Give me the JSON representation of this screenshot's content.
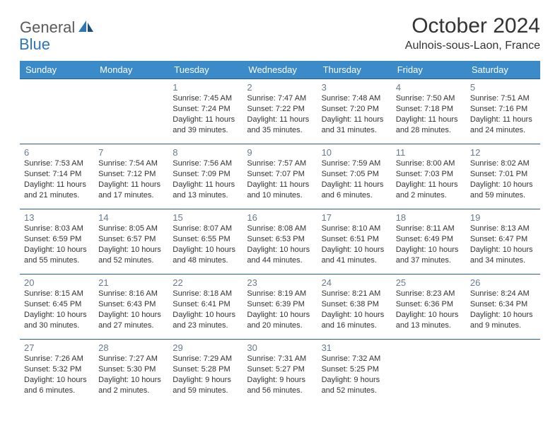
{
  "logo": {
    "general": "General",
    "blue": "Blue"
  },
  "title": "October 2024",
  "location": "Aulnois-sous-Laon, France",
  "colors": {
    "header_bg": "#3b8bc9",
    "header_text": "#ffffff",
    "row_border": "#2e5f8a",
    "daynum": "#697b8c",
    "body_text": "#333333",
    "logo_gray": "#5a5a5a",
    "logo_blue": "#2e75b6",
    "page_bg": "#ffffff"
  },
  "typography": {
    "title_fontsize": 30,
    "location_fontsize": 16,
    "dayheader_fontsize": 13,
    "daynum_fontsize": 13,
    "cell_fontsize": 11
  },
  "day_headers": [
    "Sunday",
    "Monday",
    "Tuesday",
    "Wednesday",
    "Thursday",
    "Friday",
    "Saturday"
  ],
  "weeks": [
    [
      null,
      null,
      {
        "n": "1",
        "sunrise": "Sunrise: 7:45 AM",
        "sunset": "Sunset: 7:24 PM",
        "daylight": "Daylight: 11 hours and 39 minutes."
      },
      {
        "n": "2",
        "sunrise": "Sunrise: 7:47 AM",
        "sunset": "Sunset: 7:22 PM",
        "daylight": "Daylight: 11 hours and 35 minutes."
      },
      {
        "n": "3",
        "sunrise": "Sunrise: 7:48 AM",
        "sunset": "Sunset: 7:20 PM",
        "daylight": "Daylight: 11 hours and 31 minutes."
      },
      {
        "n": "4",
        "sunrise": "Sunrise: 7:50 AM",
        "sunset": "Sunset: 7:18 PM",
        "daylight": "Daylight: 11 hours and 28 minutes."
      },
      {
        "n": "5",
        "sunrise": "Sunrise: 7:51 AM",
        "sunset": "Sunset: 7:16 PM",
        "daylight": "Daylight: 11 hours and 24 minutes."
      }
    ],
    [
      {
        "n": "6",
        "sunrise": "Sunrise: 7:53 AM",
        "sunset": "Sunset: 7:14 PM",
        "daylight": "Daylight: 11 hours and 21 minutes."
      },
      {
        "n": "7",
        "sunrise": "Sunrise: 7:54 AM",
        "sunset": "Sunset: 7:12 PM",
        "daylight": "Daylight: 11 hours and 17 minutes."
      },
      {
        "n": "8",
        "sunrise": "Sunrise: 7:56 AM",
        "sunset": "Sunset: 7:09 PM",
        "daylight": "Daylight: 11 hours and 13 minutes."
      },
      {
        "n": "9",
        "sunrise": "Sunrise: 7:57 AM",
        "sunset": "Sunset: 7:07 PM",
        "daylight": "Daylight: 11 hours and 10 minutes."
      },
      {
        "n": "10",
        "sunrise": "Sunrise: 7:59 AM",
        "sunset": "Sunset: 7:05 PM",
        "daylight": "Daylight: 11 hours and 6 minutes."
      },
      {
        "n": "11",
        "sunrise": "Sunrise: 8:00 AM",
        "sunset": "Sunset: 7:03 PM",
        "daylight": "Daylight: 11 hours and 2 minutes."
      },
      {
        "n": "12",
        "sunrise": "Sunrise: 8:02 AM",
        "sunset": "Sunset: 7:01 PM",
        "daylight": "Daylight: 10 hours and 59 minutes."
      }
    ],
    [
      {
        "n": "13",
        "sunrise": "Sunrise: 8:03 AM",
        "sunset": "Sunset: 6:59 PM",
        "daylight": "Daylight: 10 hours and 55 minutes."
      },
      {
        "n": "14",
        "sunrise": "Sunrise: 8:05 AM",
        "sunset": "Sunset: 6:57 PM",
        "daylight": "Daylight: 10 hours and 52 minutes."
      },
      {
        "n": "15",
        "sunrise": "Sunrise: 8:07 AM",
        "sunset": "Sunset: 6:55 PM",
        "daylight": "Daylight: 10 hours and 48 minutes."
      },
      {
        "n": "16",
        "sunrise": "Sunrise: 8:08 AM",
        "sunset": "Sunset: 6:53 PM",
        "daylight": "Daylight: 10 hours and 44 minutes."
      },
      {
        "n": "17",
        "sunrise": "Sunrise: 8:10 AM",
        "sunset": "Sunset: 6:51 PM",
        "daylight": "Daylight: 10 hours and 41 minutes."
      },
      {
        "n": "18",
        "sunrise": "Sunrise: 8:11 AM",
        "sunset": "Sunset: 6:49 PM",
        "daylight": "Daylight: 10 hours and 37 minutes."
      },
      {
        "n": "19",
        "sunrise": "Sunrise: 8:13 AM",
        "sunset": "Sunset: 6:47 PM",
        "daylight": "Daylight: 10 hours and 34 minutes."
      }
    ],
    [
      {
        "n": "20",
        "sunrise": "Sunrise: 8:15 AM",
        "sunset": "Sunset: 6:45 PM",
        "daylight": "Daylight: 10 hours and 30 minutes."
      },
      {
        "n": "21",
        "sunrise": "Sunrise: 8:16 AM",
        "sunset": "Sunset: 6:43 PM",
        "daylight": "Daylight: 10 hours and 27 minutes."
      },
      {
        "n": "22",
        "sunrise": "Sunrise: 8:18 AM",
        "sunset": "Sunset: 6:41 PM",
        "daylight": "Daylight: 10 hours and 23 minutes."
      },
      {
        "n": "23",
        "sunrise": "Sunrise: 8:19 AM",
        "sunset": "Sunset: 6:39 PM",
        "daylight": "Daylight: 10 hours and 20 minutes."
      },
      {
        "n": "24",
        "sunrise": "Sunrise: 8:21 AM",
        "sunset": "Sunset: 6:38 PM",
        "daylight": "Daylight: 10 hours and 16 minutes."
      },
      {
        "n": "25",
        "sunrise": "Sunrise: 8:23 AM",
        "sunset": "Sunset: 6:36 PM",
        "daylight": "Daylight: 10 hours and 13 minutes."
      },
      {
        "n": "26",
        "sunrise": "Sunrise: 8:24 AM",
        "sunset": "Sunset: 6:34 PM",
        "daylight": "Daylight: 10 hours and 9 minutes."
      }
    ],
    [
      {
        "n": "27",
        "sunrise": "Sunrise: 7:26 AM",
        "sunset": "Sunset: 5:32 PM",
        "daylight": "Daylight: 10 hours and 6 minutes."
      },
      {
        "n": "28",
        "sunrise": "Sunrise: 7:27 AM",
        "sunset": "Sunset: 5:30 PM",
        "daylight": "Daylight: 10 hours and 2 minutes."
      },
      {
        "n": "29",
        "sunrise": "Sunrise: 7:29 AM",
        "sunset": "Sunset: 5:28 PM",
        "daylight": "Daylight: 9 hours and 59 minutes."
      },
      {
        "n": "30",
        "sunrise": "Sunrise: 7:31 AM",
        "sunset": "Sunset: 5:27 PM",
        "daylight": "Daylight: 9 hours and 56 minutes."
      },
      {
        "n": "31",
        "sunrise": "Sunrise: 7:32 AM",
        "sunset": "Sunset: 5:25 PM",
        "daylight": "Daylight: 9 hours and 52 minutes."
      },
      null,
      null
    ]
  ]
}
